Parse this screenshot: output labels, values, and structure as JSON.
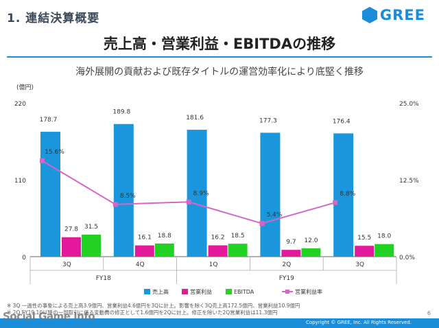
{
  "header": {
    "section_title": "1. 連結決算概要",
    "logo_text": "GREE",
    "main_title": "売上高・営業利益・EBITDAの推移",
    "subtitle": "海外展開の貢献および既存タイトルの運営効率化により底堅く推移"
  },
  "colors": {
    "revenue": "#1a97dc",
    "operating_income": "#e4189a",
    "ebitda": "#22d222",
    "margin": "#d466c4",
    "accent": "#1a8cd8"
  },
  "chart_data": {
    "type": "bar",
    "categories": [
      "3Q",
      "4Q",
      "1Q",
      "2Q",
      "3Q"
    ],
    "fiscal_years": [
      {
        "label": "FY18",
        "span": [
          0,
          1
        ]
      },
      {
        "label": "FY19",
        "span": [
          2,
          4
        ]
      }
    ],
    "ylabel": "(億円)",
    "ylim": [
      0,
      220
    ],
    "yticks": [
      "0",
      "110",
      "220"
    ],
    "y2lim": [
      0,
      25
    ],
    "y2ticks": [
      "0.0%",
      "12.5%",
      "25.0%"
    ],
    "series": [
      {
        "name": "売上高",
        "type": "bar",
        "values": [
          178.7,
          189.8,
          181.6,
          177.3,
          176.4
        ],
        "labels": [
          "178.7",
          "189.8",
          "181.6",
          "177.3",
          "176.4"
        ]
      },
      {
        "name": "営業利益",
        "type": "bar",
        "values": [
          27.8,
          16.1,
          16.2,
          9.7,
          15.5
        ],
        "labels": [
          "27.8",
          "16.1",
          "16.2",
          "9.7",
          "15.5"
        ]
      },
      {
        "name": "EBITDA",
        "type": "bar",
        "values": [
          31.5,
          18.8,
          18.5,
          12.0,
          18.0
        ],
        "labels": [
          "31.5",
          "18.8",
          "18.5",
          "12.0",
          "18.0"
        ]
      },
      {
        "name": "営業利益率",
        "type": "line",
        "axis": "right",
        "values": [
          15.6,
          8.5,
          8.9,
          5.4,
          8.8
        ],
        "labels": [
          "15.6%",
          "8.5%",
          "8.9%",
          "5.4%",
          "8.8%"
        ]
      }
    ],
    "legend_position": "bottom-center",
    "grid": false
  },
  "footer": {
    "note1": "※ 3Q 一過性の事象による売上高3.9億円、営業利益4.6億円を3Qに計上。影響を除く3Q売上高172.5億円、営業利益10.9億円",
    "note2": "※ 2Q FY19.10以降の一部取引に係る変動費の修正として1.6億円を2Qに計上。修正を除いた2Q営業利益は11.3億円",
    "page_number": "6",
    "copyright": "Copyright © GREE, Inc. All Rights Reserved.",
    "watermark": "Social Game Info"
  }
}
